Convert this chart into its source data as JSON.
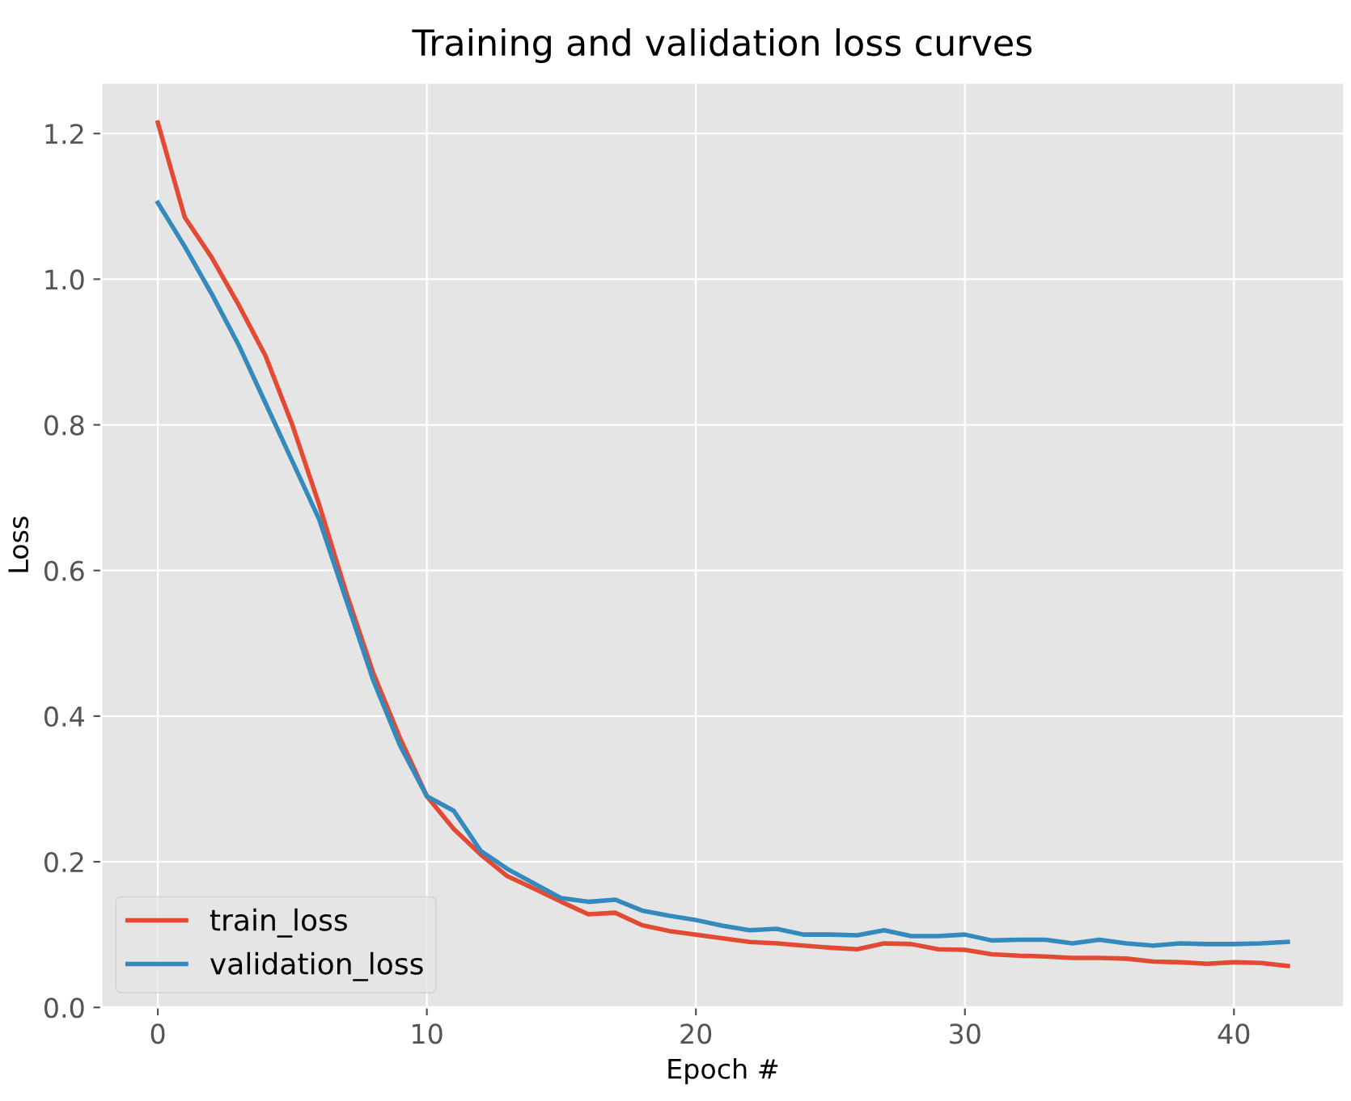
{
  "chart_data": {
    "type": "line",
    "title": "Training and validation loss curves",
    "xlabel": "Epoch #",
    "ylabel": "Loss",
    "x": [
      0,
      1,
      2,
      3,
      4,
      5,
      6,
      7,
      8,
      9,
      10,
      11,
      12,
      13,
      14,
      15,
      16,
      17,
      18,
      19,
      20,
      21,
      22,
      23,
      24,
      25,
      26,
      27,
      28,
      29,
      30,
      31,
      32,
      33,
      34,
      35,
      36,
      37,
      38,
      39,
      40,
      41,
      42
    ],
    "series": [
      {
        "name": "train_loss",
        "color": "#e24a33",
        "values": [
          1.215,
          1.085,
          1.03,
          0.965,
          0.895,
          0.8,
          0.69,
          0.57,
          0.46,
          0.37,
          0.29,
          0.245,
          0.21,
          0.18,
          0.163,
          0.145,
          0.128,
          0.13,
          0.113,
          0.105,
          0.1,
          0.095,
          0.09,
          0.088,
          0.085,
          0.082,
          0.08,
          0.088,
          0.087,
          0.08,
          0.079,
          0.073,
          0.071,
          0.07,
          0.068,
          0.068,
          0.067,
          0.063,
          0.062,
          0.06,
          0.062,
          0.061,
          0.057
        ]
      },
      {
        "name": "validation_loss",
        "color": "#348abd",
        "values": [
          1.105,
          1.045,
          0.98,
          0.91,
          0.83,
          0.75,
          0.67,
          0.56,
          0.45,
          0.36,
          0.29,
          0.27,
          0.215,
          0.19,
          0.17,
          0.15,
          0.145,
          0.148,
          0.133,
          0.126,
          0.12,
          0.112,
          0.106,
          0.108,
          0.1,
          0.1,
          0.099,
          0.106,
          0.098,
          0.098,
          0.1,
          0.092,
          0.093,
          0.093,
          0.088,
          0.093,
          0.088,
          0.085,
          0.088,
          0.087,
          0.087,
          0.088,
          0.09
        ]
      }
    ],
    "xlim": [
      -2.1,
      44.1
    ],
    "ylim": [
      0,
      1.27
    ],
    "xticks": [
      0,
      10,
      20,
      30,
      40
    ],
    "yticks": [
      {
        "value": 0,
        "label": "0.0"
      },
      {
        "value": 0.2,
        "label": "0.2"
      },
      {
        "value": 0.4,
        "label": "0.4"
      },
      {
        "value": 0.6,
        "label": "0.6"
      },
      {
        "value": 0.8,
        "label": "0.8"
      },
      {
        "value": 1.0,
        "label": "1.0"
      },
      {
        "value": 1.2,
        "label": "1.2"
      }
    ],
    "grid": true,
    "legend": "bottom left",
    "marker": "none",
    "line_style": "solid"
  }
}
